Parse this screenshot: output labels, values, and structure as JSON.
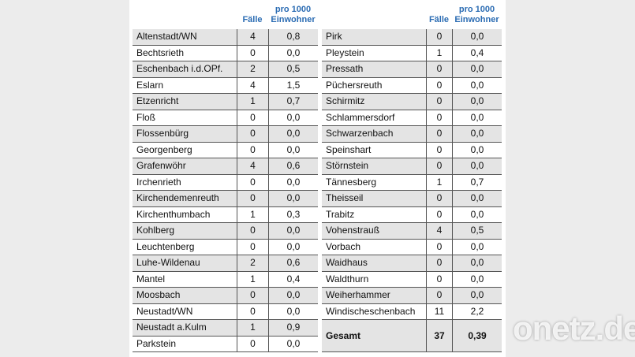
{
  "tables": [
    {
      "header": {
        "cases": "Fälle",
        "rate": [
          "pro 1000",
          "Einwohner"
        ]
      },
      "rows": [
        [
          "Altenstadt/WN",
          "4",
          "0,8"
        ],
        [
          "Bechtsrieth",
          "0",
          "0,0"
        ],
        [
          "Eschenbach i.d.OPf.",
          "2",
          "0,5"
        ],
        [
          "Eslarn",
          "4",
          "1,5"
        ],
        [
          "Etzenricht",
          "1",
          "0,7"
        ],
        [
          "Floß",
          "0",
          "0,0"
        ],
        [
          "Flossenbürg",
          "0",
          "0,0"
        ],
        [
          "Georgenberg",
          "0",
          "0,0"
        ],
        [
          "Grafenwöhr",
          "4",
          "0,6"
        ],
        [
          "Irchenrieth",
          "0",
          "0,0"
        ],
        [
          "Kirchendemenreuth",
          "0",
          "0,0"
        ],
        [
          "Kirchenthumbach",
          "1",
          "0,3"
        ],
        [
          "Kohlberg",
          "0",
          "0,0"
        ],
        [
          "Leuchtenberg",
          "0",
          "0,0"
        ],
        [
          "Luhe-Wildenau",
          "2",
          "0,6"
        ],
        [
          "Mantel",
          "1",
          "0,4"
        ],
        [
          "Moosbach",
          "0",
          "0,0"
        ],
        [
          "Neustadt/WN",
          "0",
          "0,0"
        ],
        [
          "Neustadt a.Kulm",
          "1",
          "0,9"
        ],
        [
          "Parkstein",
          "0",
          "0,0"
        ]
      ]
    },
    {
      "header": {
        "cases": "Fälle",
        "rate": [
          "pro 1000",
          "Einwohner"
        ]
      },
      "rows": [
        [
          "Pirk",
          "0",
          "0,0"
        ],
        [
          "Pleystein",
          "1",
          "0,4"
        ],
        [
          "Pressath",
          "0",
          "0,0"
        ],
        [
          "Püchersreuth",
          "0",
          "0,0"
        ],
        [
          "Schirmitz",
          "0",
          "0,0"
        ],
        [
          "Schlammersdorf",
          "0",
          "0,0"
        ],
        [
          "Schwarzenbach",
          "0",
          "0,0"
        ],
        [
          "Speinshart",
          "0",
          "0,0"
        ],
        [
          "Störnstein",
          "0",
          "0,0"
        ],
        [
          "Tännesberg",
          "1",
          "0,7"
        ],
        [
          "Theisseil",
          "0",
          "0,0"
        ],
        [
          "Trabitz",
          "0",
          "0,0"
        ],
        [
          "Vohenstrauß",
          "4",
          "0,5"
        ],
        [
          "Vorbach",
          "0",
          "0,0"
        ],
        [
          "Waidhaus",
          "0",
          "0,0"
        ],
        [
          "Waldthurn",
          "0",
          "0,0"
        ],
        [
          "Weiherhammer",
          "0",
          "0,0"
        ],
        [
          "Windischeschenbach",
          "11",
          "2,2"
        ]
      ],
      "total": [
        "Gesamt",
        "37",
        "0,39"
      ]
    }
  ],
  "watermark": "onetz.de"
}
